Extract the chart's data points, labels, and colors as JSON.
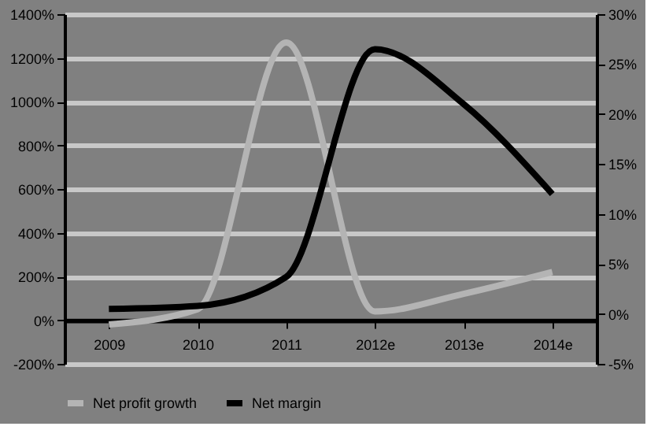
{
  "chart_data": {
    "type": "line",
    "categories": [
      "2009",
      "2010",
      "2011",
      "2012e",
      "2013e",
      "2014e"
    ],
    "series": [
      {
        "name": "Net profit growth",
        "color": "#b4b4b4",
        "values": [
          -20,
          50,
          1270,
          40,
          120,
          220
        ]
      },
      {
        "name": "Net margin",
        "color": "#000000",
        "axis": "y2",
        "values": [
          0.5,
          0.8,
          3.7,
          26.5,
          21,
          12
        ]
      }
    ],
    "ylim": [
      -200,
      1400
    ],
    "yticks": [
      {
        "value": -200,
        "label": "-200%"
      },
      {
        "value": 0,
        "label": "0%"
      },
      {
        "value": 200,
        "label": "200%"
      },
      {
        "value": 400,
        "label": "400%"
      },
      {
        "value": 600,
        "label": "600%"
      },
      {
        "value": 800,
        "label": "800%"
      },
      {
        "value": 1000,
        "label": "1000%"
      },
      {
        "value": 1200,
        "label": "1200%"
      },
      {
        "value": 1400,
        "label": "1400%"
      }
    ],
    "y2lim": [
      -5,
      30
    ],
    "y2ticks": [
      {
        "value": -5,
        "label": "-5%"
      },
      {
        "value": 0,
        "label": "0%"
      },
      {
        "value": 5,
        "label": "5%"
      },
      {
        "value": 10,
        "label": "10%"
      },
      {
        "value": 15,
        "label": "15%"
      },
      {
        "value": 20,
        "label": "20%"
      },
      {
        "value": 25,
        "label": "25%"
      },
      {
        "value": 30,
        "label": "30%"
      }
    ],
    "grid": "y",
    "legend": "bottom",
    "marker": "none",
    "line_style": "solid"
  }
}
